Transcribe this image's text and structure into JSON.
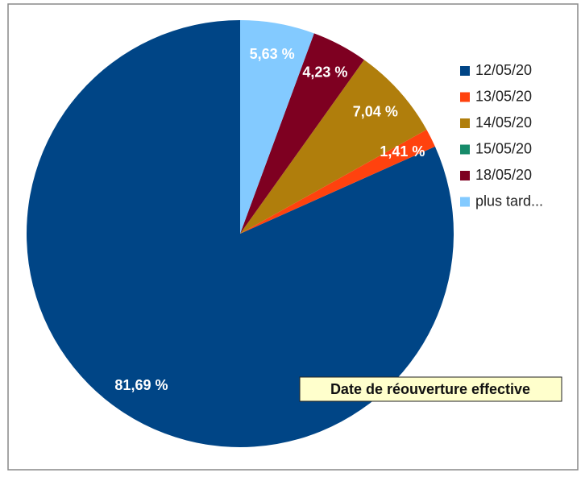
{
  "chart_data": {
    "type": "pie",
    "title": "Date de réouverture effective",
    "categories": [
      "12/05/20",
      "13/05/20",
      "14/05/20",
      "15/05/20",
      "18/05/20",
      "plus tard..."
    ],
    "values": [
      81.69,
      1.41,
      7.04,
      0,
      4.23,
      5.63
    ],
    "value_labels": [
      "81,69 %",
      "1,41 %",
      "7,04 %",
      null,
      "4,23 %",
      "5,63 %"
    ],
    "colors": [
      "#004586",
      "#ff420e",
      "#b07e0c",
      "#168b6a",
      "#7e0021",
      "#83caff"
    ],
    "direction": "counterclockwise",
    "legend": "right"
  }
}
